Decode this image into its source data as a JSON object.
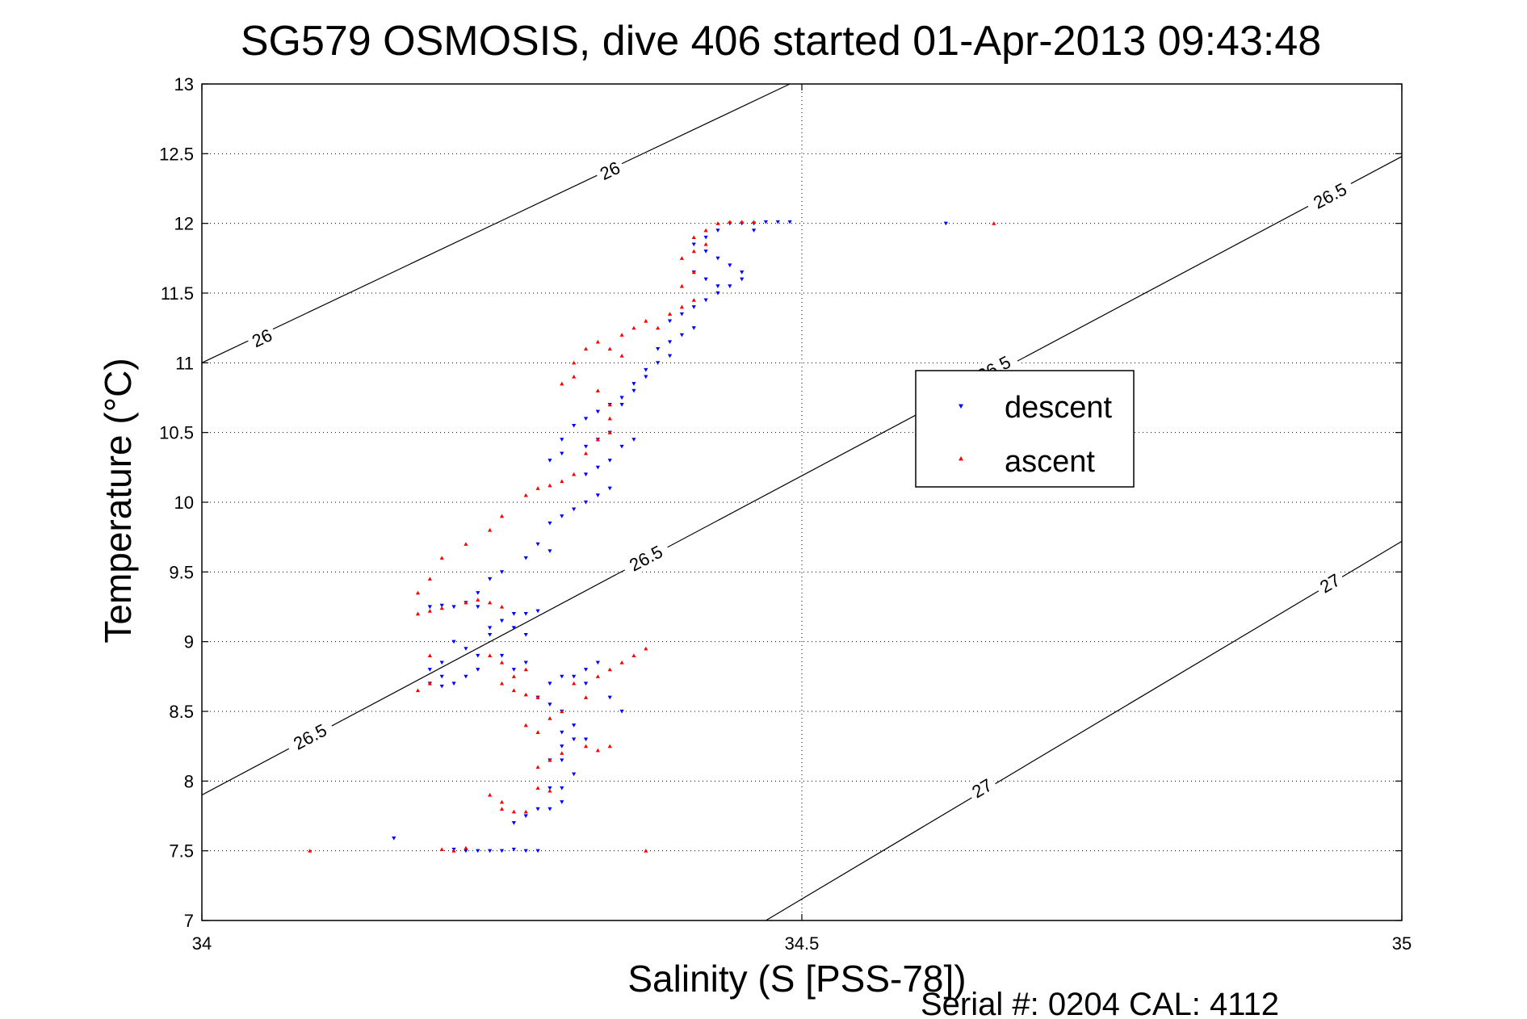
{
  "chart_data": {
    "type": "scatter",
    "title": "SG579 OSMOSIS, dive 406 started 01-Apr-2013 09:43:48",
    "xlabel": "Salinity (S [PSS-78])",
    "ylabel": "Temperature (°C)",
    "footer": "Serial #: 0204  CAL: 4112",
    "xlim": [
      34,
      35
    ],
    "ylim": [
      7,
      13
    ],
    "xticks": [
      34,
      34.5,
      35
    ],
    "xtick_labels": [
      "34",
      "34.5",
      "35"
    ],
    "yticks": [
      7,
      7.5,
      8,
      8.5,
      9,
      9.5,
      10,
      10.5,
      11,
      11.5,
      12,
      12.5,
      13
    ],
    "ytick_labels": [
      "7",
      "7.5",
      "8",
      "8.5",
      "9",
      "9.5",
      "10",
      "10.5",
      "11",
      "11.5",
      "12",
      "12.5",
      "13"
    ],
    "grid": true,
    "legend_position": "center-right",
    "series": [
      {
        "name": "descent",
        "color": "#0000ff",
        "marker": "triangle-down",
        "points": [
          [
            34.16,
            7.59
          ],
          [
            34.21,
            7.51
          ],
          [
            34.22,
            7.5
          ],
          [
            34.23,
            7.5
          ],
          [
            34.24,
            7.5
          ],
          [
            34.25,
            7.5
          ],
          [
            34.26,
            7.51
          ],
          [
            34.27,
            7.5
          ],
          [
            34.28,
            7.5
          ],
          [
            34.26,
            7.7
          ],
          [
            34.27,
            7.75
          ],
          [
            34.28,
            7.8
          ],
          [
            34.29,
            7.8
          ],
          [
            34.3,
            7.85
          ],
          [
            34.29,
            7.95
          ],
          [
            34.3,
            7.95
          ],
          [
            34.31,
            8.05
          ],
          [
            34.3,
            8.15
          ],
          [
            34.29,
            8.15
          ],
          [
            34.3,
            8.25
          ],
          [
            34.31,
            8.3
          ],
          [
            34.3,
            8.35
          ],
          [
            34.32,
            8.3
          ],
          [
            34.31,
            8.4
          ],
          [
            34.3,
            8.5
          ],
          [
            34.29,
            8.55
          ],
          [
            34.28,
            8.6
          ],
          [
            34.29,
            8.7
          ],
          [
            34.3,
            8.75
          ],
          [
            34.31,
            8.75
          ],
          [
            34.32,
            8.8
          ],
          [
            34.33,
            8.85
          ],
          [
            34.32,
            8.7
          ],
          [
            34.34,
            8.6
          ],
          [
            34.35,
            8.5
          ],
          [
            34.27,
            8.85
          ],
          [
            34.26,
            8.8
          ],
          [
            34.25,
            8.9
          ],
          [
            34.23,
            8.9
          ],
          [
            34.22,
            8.95
          ],
          [
            34.21,
            9.0
          ],
          [
            34.2,
            8.85
          ],
          [
            34.19,
            8.8
          ],
          [
            34.2,
            8.75
          ],
          [
            34.19,
            8.7
          ],
          [
            34.2,
            8.68
          ],
          [
            34.21,
            8.7
          ],
          [
            34.22,
            8.75
          ],
          [
            34.23,
            8.8
          ],
          [
            34.24,
            9.05
          ],
          [
            34.24,
            9.1
          ],
          [
            34.25,
            9.15
          ],
          [
            34.26,
            9.2
          ],
          [
            34.27,
            9.2
          ],
          [
            34.28,
            9.22
          ],
          [
            34.26,
            9.1
          ],
          [
            34.27,
            9.05
          ],
          [
            34.19,
            9.25
          ],
          [
            34.2,
            9.26
          ],
          [
            34.21,
            9.25
          ],
          [
            34.22,
            9.28
          ],
          [
            34.23,
            9.25
          ],
          [
            34.23,
            9.35
          ],
          [
            34.24,
            9.45
          ],
          [
            34.25,
            9.5
          ],
          [
            34.27,
            9.6
          ],
          [
            34.28,
            9.7
          ],
          [
            34.29,
            9.65
          ],
          [
            34.29,
            9.85
          ],
          [
            34.3,
            9.9
          ],
          [
            34.31,
            9.95
          ],
          [
            34.32,
            10.0
          ],
          [
            34.33,
            10.05
          ],
          [
            34.34,
            10.1
          ],
          [
            34.32,
            10.2
          ],
          [
            34.33,
            10.25
          ],
          [
            34.34,
            10.3
          ],
          [
            34.35,
            10.4
          ],
          [
            34.36,
            10.45
          ],
          [
            34.34,
            10.5
          ],
          [
            34.33,
            10.45
          ],
          [
            34.32,
            10.4
          ],
          [
            34.3,
            10.35
          ],
          [
            34.29,
            10.3
          ],
          [
            34.3,
            10.45
          ],
          [
            34.31,
            10.55
          ],
          [
            34.32,
            10.6
          ],
          [
            34.33,
            10.65
          ],
          [
            34.34,
            10.7
          ],
          [
            34.35,
            10.75
          ],
          [
            34.36,
            10.85
          ],
          [
            34.37,
            10.95
          ],
          [
            34.38,
            11.0
          ],
          [
            34.39,
            11.05
          ],
          [
            34.38,
            11.1
          ],
          [
            34.39,
            11.15
          ],
          [
            34.4,
            11.2
          ],
          [
            34.41,
            11.25
          ],
          [
            34.39,
            11.3
          ],
          [
            34.4,
            11.35
          ],
          [
            34.41,
            11.4
          ],
          [
            34.42,
            11.45
          ],
          [
            34.43,
            11.5
          ],
          [
            34.44,
            11.55
          ],
          [
            34.45,
            11.6
          ],
          [
            34.44,
            11.7
          ],
          [
            34.43,
            11.75
          ],
          [
            34.42,
            11.8
          ],
          [
            34.41,
            11.85
          ],
          [
            34.42,
            11.9
          ],
          [
            34.43,
            11.95
          ],
          [
            34.44,
            12.0
          ],
          [
            34.45,
            12.0
          ],
          [
            34.46,
            12.0
          ],
          [
            34.47,
            12.01
          ],
          [
            34.48,
            12.01
          ],
          [
            34.49,
            12.01
          ],
          [
            34.46,
            11.95
          ],
          [
            34.45,
            11.65
          ],
          [
            34.43,
            11.55
          ],
          [
            34.42,
            11.6
          ],
          [
            34.41,
            11.65
          ],
          [
            34.37,
            10.9
          ],
          [
            34.36,
            10.8
          ],
          [
            34.35,
            10.7
          ],
          [
            34.62,
            12.0
          ]
        ]
      },
      {
        "name": "ascent",
        "color": "#ff0000",
        "marker": "triangle-up",
        "points": [
          [
            34.09,
            7.5
          ],
          [
            34.2,
            7.51
          ],
          [
            34.21,
            7.5
          ],
          [
            34.22,
            7.52
          ],
          [
            34.37,
            7.5
          ],
          [
            34.25,
            7.8
          ],
          [
            34.26,
            7.78
          ],
          [
            34.27,
            7.78
          ],
          [
            34.25,
            7.85
          ],
          [
            34.24,
            7.9
          ],
          [
            34.28,
            7.95
          ],
          [
            34.29,
            7.93
          ],
          [
            34.28,
            8.1
          ],
          [
            34.29,
            8.15
          ],
          [
            34.3,
            8.2
          ],
          [
            34.32,
            8.25
          ],
          [
            34.33,
            8.22
          ],
          [
            34.34,
            8.25
          ],
          [
            34.28,
            8.35
          ],
          [
            34.27,
            8.4
          ],
          [
            34.29,
            8.45
          ],
          [
            34.3,
            8.5
          ],
          [
            34.28,
            8.6
          ],
          [
            34.27,
            8.62
          ],
          [
            34.26,
            8.65
          ],
          [
            34.25,
            8.7
          ],
          [
            34.26,
            8.75
          ],
          [
            34.27,
            8.8
          ],
          [
            34.25,
            8.85
          ],
          [
            34.24,
            8.9
          ],
          [
            34.33,
            8.75
          ],
          [
            34.34,
            8.8
          ],
          [
            34.35,
            8.85
          ],
          [
            34.36,
            8.9
          ],
          [
            34.37,
            8.95
          ],
          [
            34.31,
            8.7
          ],
          [
            34.32,
            8.6
          ],
          [
            34.19,
            8.7
          ],
          [
            34.18,
            8.65
          ],
          [
            34.19,
            8.9
          ],
          [
            34.18,
            9.2
          ],
          [
            34.19,
            9.22
          ],
          [
            34.2,
            9.24
          ],
          [
            34.22,
            9.28
          ],
          [
            34.23,
            9.3
          ],
          [
            34.24,
            9.28
          ],
          [
            34.25,
            9.25
          ],
          [
            34.18,
            9.35
          ],
          [
            34.19,
            9.45
          ],
          [
            34.2,
            9.6
          ],
          [
            34.22,
            9.7
          ],
          [
            34.24,
            9.8
          ],
          [
            34.25,
            9.9
          ],
          [
            34.27,
            10.05
          ],
          [
            34.28,
            10.1
          ],
          [
            34.29,
            10.12
          ],
          [
            34.3,
            10.15
          ],
          [
            34.31,
            10.2
          ],
          [
            34.32,
            10.35
          ],
          [
            34.33,
            10.45
          ],
          [
            34.34,
            10.5
          ],
          [
            34.34,
            10.6
          ],
          [
            34.34,
            10.7
          ],
          [
            34.33,
            10.8
          ],
          [
            34.31,
            10.9
          ],
          [
            34.3,
            10.85
          ],
          [
            34.31,
            11.0
          ],
          [
            34.32,
            11.1
          ],
          [
            34.33,
            11.15
          ],
          [
            34.35,
            11.2
          ],
          [
            34.36,
            11.25
          ],
          [
            34.37,
            11.3
          ],
          [
            34.38,
            11.25
          ],
          [
            34.39,
            11.35
          ],
          [
            34.4,
            11.4
          ],
          [
            34.41,
            11.45
          ],
          [
            34.4,
            11.55
          ],
          [
            34.41,
            11.65
          ],
          [
            34.4,
            11.75
          ],
          [
            34.41,
            11.8
          ],
          [
            34.42,
            11.85
          ],
          [
            34.41,
            11.9
          ],
          [
            34.42,
            11.95
          ],
          [
            34.43,
            12.0
          ],
          [
            34.44,
            12.01
          ],
          [
            34.45,
            12.01
          ],
          [
            34.46,
            12.01
          ],
          [
            34.35,
            11.05
          ],
          [
            34.34,
            11.1
          ],
          [
            34.66,
            12.0
          ]
        ]
      }
    ],
    "contours": [
      {
        "label": "26",
        "points": [
          [
            34,
            11.0
          ],
          [
            34.49,
            13.0
          ]
        ],
        "label_at": [
          [
            34.05,
            11.18
          ],
          [
            34.34,
            12.38
          ]
        ]
      },
      {
        "label": "26.5",
        "points": [
          [
            34,
            7.9
          ],
          [
            35,
            12.48
          ]
        ],
        "label_at": [
          [
            34.09,
            8.32
          ],
          [
            34.37,
            9.6
          ],
          [
            34.66,
            10.96
          ],
          [
            34.94,
            12.2
          ]
        ]
      },
      {
        "label": "27",
        "points": [
          [
            34.47,
            7.0
          ],
          [
            35,
            9.72
          ]
        ],
        "label_at": [
          [
            34.65,
            7.95
          ],
          [
            34.94,
            9.42
          ]
        ]
      }
    ]
  }
}
